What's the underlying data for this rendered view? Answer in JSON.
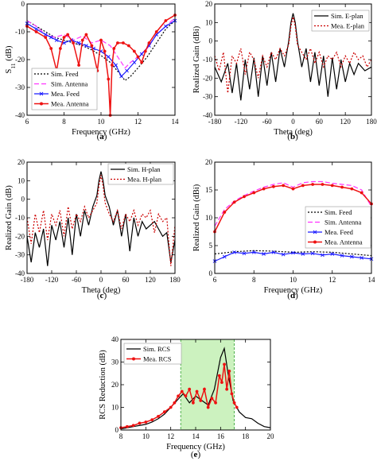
{
  "chart_data": [
    {
      "id": "a",
      "type": "line",
      "panel_label": "(a)",
      "xlabel": "Frequency (GHz)",
      "ylabel": "S11 (dB)",
      "xlim": [
        6,
        14
      ],
      "ylim": [
        -40,
        0
      ],
      "xticks": [
        6,
        8,
        10,
        12,
        14
      ],
      "yticks": [
        -40,
        -30,
        -20,
        -10,
        0
      ],
      "xtick_labels": [
        "6",
        "8",
        "10",
        "12",
        "14"
      ],
      "ytick_labels": [
        "-40",
        "-30",
        "-20",
        "-10",
        "0"
      ],
      "legend_position": "bottom-left",
      "grid": false,
      "series": [
        {
          "name": "Sim. Feed",
          "color": "#000000",
          "dash": "2,2",
          "marker": "none",
          "x": [
            6,
            6.5,
            7,
            7.5,
            8,
            8.5,
            9,
            9.5,
            10,
            10.5,
            11,
            11.3,
            11.6,
            12,
            12.5,
            13,
            13.5,
            14
          ],
          "y": [
            -6,
            -8,
            -10,
            -12,
            -13,
            -14,
            -15,
            -16.5,
            -18.5,
            -21,
            -25,
            -27.5,
            -26,
            -23,
            -19,
            -14,
            -9,
            -6
          ]
        },
        {
          "name": "Sim. Antenna",
          "color": "#ff33ff",
          "dash": "6,3",
          "marker": "none",
          "x": [
            6,
            6.5,
            7,
            7.5,
            8,
            8.5,
            9,
            9.5,
            10,
            10.5,
            11,
            11.3,
            11.6,
            12,
            12.5,
            13,
            13.5,
            14
          ],
          "y": [
            -6,
            -8,
            -11,
            -12,
            -11,
            -13,
            -11.5,
            -14,
            -13,
            -15,
            -20,
            -23,
            -21,
            -19,
            -16,
            -11,
            -8,
            -5
          ]
        },
        {
          "name": "Mea. Feed",
          "color": "#1a1aff",
          "dash": "",
          "marker": "x",
          "x": [
            6,
            6.5,
            7,
            7.3,
            7.6,
            8,
            8.4,
            8.8,
            9.2,
            9.6,
            10,
            10.4,
            10.8,
            11.1,
            11.4,
            11.8,
            12.2,
            12.6,
            13,
            13.5,
            14
          ],
          "y": [
            -7,
            -9,
            -11,
            -12,
            -13,
            -14,
            -13,
            -14,
            -15,
            -16,
            -17,
            -19,
            -22,
            -26,
            -24,
            -21,
            -18,
            -15,
            -11,
            -8,
            -6
          ]
        },
        {
          "name": "Mea. Antenna",
          "color": "#ee1111",
          "dash": "",
          "marker": "dot",
          "x": [
            6,
            6.5,
            7,
            7.3,
            7.6,
            7.8,
            8,
            8.2,
            8.5,
            8.8,
            9,
            9.2,
            9.5,
            9.8,
            10,
            10.2,
            10.4,
            10.5,
            10.6,
            10.7,
            10.9,
            11.2,
            11.5,
            11.8,
            12,
            12.2,
            12.4,
            12.6,
            13,
            13.5,
            14
          ],
          "y": [
            -8,
            -10,
            -12,
            -16,
            -24,
            -16,
            -12,
            -11,
            -14,
            -22,
            -13,
            -11,
            -15,
            -24,
            -13,
            -17,
            -27,
            -40,
            -22,
            -16,
            -14,
            -14,
            -15,
            -17,
            -19,
            -21,
            -17,
            -14,
            -10,
            -6,
            -4
          ]
        }
      ]
    },
    {
      "id": "b",
      "type": "line",
      "panel_label": "(b)",
      "xlabel": "Theta (deg)",
      "ylabel": "Realized Gain (dBi)",
      "xlim": [
        -180,
        180
      ],
      "ylim": [
        -40,
        20
      ],
      "xticks": [
        -180,
        -120,
        -60,
        0,
        60,
        120,
        180
      ],
      "yticks": [
        -40,
        -30,
        -20,
        -10,
        0,
        10,
        20
      ],
      "xtick_labels": [
        "-180",
        "-120",
        "-60",
        "0",
        "60",
        "120",
        "180"
      ],
      "ytick_labels": [
        "-40",
        "-30",
        "-20",
        "-10",
        "0",
        "10",
        "20"
      ],
      "legend_position": "top-right",
      "grid": false,
      "series": [
        {
          "name": "Sim. E-plan",
          "color": "#000000",
          "dash": "",
          "marker": "none",
          "x": [
            -180,
            -165,
            -150,
            -140,
            -130,
            -120,
            -110,
            -100,
            -90,
            -80,
            -70,
            -60,
            -50,
            -40,
            -30,
            -20,
            -10,
            -5,
            0,
            5,
            10,
            20,
            30,
            40,
            50,
            60,
            70,
            80,
            90,
            100,
            110,
            120,
            130,
            140,
            150,
            165,
            180
          ],
          "y": [
            -14,
            -22,
            -12,
            -28,
            -12,
            -32,
            -10,
            -26,
            -9,
            -30,
            -8,
            -24,
            -6,
            -22,
            -4,
            -14,
            0,
            10,
            15,
            10,
            0,
            -14,
            -4,
            -22,
            -6,
            -24,
            -8,
            -30,
            -9,
            -26,
            -10,
            -22,
            -12,
            -18,
            -12,
            -16,
            -14
          ]
        },
        {
          "name": "Mea. E-plan",
          "color": "#cc0000",
          "dash": "2,2",
          "marker": "none",
          "x": [
            -180,
            -170,
            -160,
            -150,
            -140,
            -130,
            -120,
            -110,
            -100,
            -90,
            -80,
            -70,
            -60,
            -50,
            -40,
            -30,
            -20,
            -10,
            -5,
            0,
            5,
            10,
            20,
            30,
            40,
            50,
            60,
            70,
            80,
            90,
            100,
            110,
            120,
            130,
            140,
            150,
            160,
            170,
            180
          ],
          "y": [
            -8,
            -16,
            -6,
            -28,
            -8,
            -12,
            -4,
            -18,
            -6,
            -10,
            -20,
            -8,
            -14,
            -6,
            -10,
            -4,
            -8,
            -2,
            8,
            13,
            8,
            -2,
            -6,
            -10,
            -4,
            -12,
            -6,
            -14,
            -8,
            -10,
            -6,
            -14,
            -8,
            -12,
            -6,
            -10,
            -8,
            -14,
            -10
          ]
        }
      ]
    },
    {
      "id": "c",
      "type": "line",
      "panel_label": "(c)",
      "xlabel": "Theta (deg)",
      "ylabel": "Realized Gain (dB)",
      "xlim": [
        -180,
        180
      ],
      "ylim": [
        -40,
        20
      ],
      "xticks": [
        -180,
        -120,
        -60,
        0,
        60,
        120,
        180
      ],
      "yticks": [
        -40,
        -30,
        -20,
        -10,
        0,
        10,
        20
      ],
      "xtick_labels": [
        "-180",
        "-120",
        "-60",
        "0",
        "60",
        "120",
        "180"
      ],
      "ytick_labels": [
        "-40",
        "-30",
        "-20",
        "-10",
        "0",
        "10",
        "20"
      ],
      "legend_position": "top-right",
      "grid": false,
      "series": [
        {
          "name": "Sim. H-plan",
          "color": "#000000",
          "dash": "",
          "marker": "none",
          "x": [
            -180,
            -170,
            -160,
            -150,
            -140,
            -130,
            -120,
            -110,
            -100,
            -90,
            -80,
            -70,
            -60,
            -50,
            -40,
            -30,
            -20,
            -10,
            -5,
            0,
            5,
            10,
            20,
            30,
            40,
            50,
            60,
            70,
            80,
            90,
            100,
            110,
            120,
            130,
            140,
            150,
            160,
            170,
            180
          ],
          "y": [
            -20,
            -34,
            -18,
            -26,
            -16,
            -36,
            -14,
            -22,
            -12,
            -26,
            -10,
            -30,
            -8,
            -20,
            -6,
            -14,
            -4,
            2,
            10,
            15,
            10,
            2,
            -4,
            -14,
            -6,
            -20,
            -8,
            -28,
            -10,
            -20,
            -12,
            -16,
            -14,
            -12,
            -16,
            -20,
            -18,
            -34,
            -22
          ]
        },
        {
          "name": "Mea. H-plan",
          "color": "#cc0000",
          "dash": "2,2",
          "marker": "none",
          "x": [
            -180,
            -170,
            -160,
            -150,
            -140,
            -130,
            -120,
            -110,
            -100,
            -90,
            -80,
            -70,
            -60,
            -50,
            -40,
            -30,
            -20,
            -10,
            -5,
            0,
            5,
            10,
            20,
            30,
            40,
            50,
            60,
            70,
            80,
            90,
            100,
            110,
            120,
            130,
            140,
            150,
            160,
            170,
            180
          ],
          "y": [
            -10,
            -24,
            -8,
            -18,
            -6,
            -22,
            -8,
            -14,
            -6,
            -20,
            -4,
            -16,
            -8,
            -12,
            -4,
            -10,
            -6,
            -2,
            7,
            13,
            7,
            -2,
            -8,
            -12,
            -6,
            -16,
            -8,
            -12,
            -6,
            -14,
            -8,
            -10,
            -6,
            -18,
            -8,
            -12,
            -10,
            -36,
            -14
          ]
        }
      ]
    },
    {
      "id": "d",
      "type": "line",
      "panel_label": "(d)",
      "xlabel": "Frequency (GHz)",
      "ylabel": "Realized Gain (dBi)",
      "xlim": [
        6,
        14
      ],
      "ylim": [
        0,
        20
      ],
      "xticks": [
        6,
        8,
        10,
        12,
        14
      ],
      "yticks": [
        0,
        5,
        10,
        15,
        20
      ],
      "xtick_labels": [
        "6",
        "8",
        "10",
        "12",
        "14"
      ],
      "ytick_labels": [
        "0",
        "5",
        "10",
        "15",
        "20"
      ],
      "legend_position": "center-right",
      "grid": false,
      "series": [
        {
          "name": "Sim. Feed",
          "color": "#000000",
          "dash": "2,2",
          "marker": "none",
          "x": [
            6,
            7,
            8,
            9,
            10,
            11,
            12,
            13,
            14
          ],
          "y": [
            3.5,
            3.9,
            4.1,
            4.0,
            3.8,
            3.9,
            3.8,
            3.5,
            3.2
          ]
        },
        {
          "name": "Sim. Antenna",
          "color": "#ff33ff",
          "dash": "6,3",
          "marker": "none",
          "x": [
            6,
            6.5,
            7,
            7.5,
            8,
            8.5,
            9,
            9.5,
            10,
            10.5,
            11,
            11.5,
            12,
            12.5,
            13,
            13.5,
            14
          ],
          "y": [
            8.5,
            11.5,
            13,
            14,
            14.8,
            15.5,
            16,
            16.3,
            15.5,
            16.3,
            16.5,
            16.5,
            16.2,
            16,
            15.8,
            15,
            12
          ]
        },
        {
          "name": "Mea. Feed",
          "color": "#1a1aff",
          "dash": "",
          "marker": "x",
          "x": [
            6,
            6.5,
            7,
            7.5,
            8,
            8.5,
            9,
            9.5,
            10,
            10.5,
            11,
            11.5,
            12,
            12.5,
            13,
            13.5,
            14
          ],
          "y": [
            2.2,
            3.0,
            3.8,
            3.6,
            3.8,
            3.5,
            3.8,
            3.4,
            3.7,
            3.5,
            3.6,
            3.3,
            3.5,
            3.2,
            3.0,
            2.8,
            2.6
          ]
        },
        {
          "name": "Mea. Antenna",
          "color": "#ee1111",
          "dash": "",
          "marker": "dot",
          "x": [
            6,
            6.5,
            7,
            7.5,
            8,
            8.5,
            9,
            9.5,
            10,
            10.5,
            11,
            11.5,
            12,
            12.5,
            13,
            13.5,
            14
          ],
          "y": [
            7.5,
            11,
            12.8,
            13.8,
            14.5,
            15.2,
            15.6,
            15.8,
            15.2,
            15.8,
            16,
            16,
            15.8,
            15.5,
            15.2,
            14.5,
            12.5
          ]
        }
      ]
    },
    {
      "id": "e",
      "type": "line",
      "panel_label": "(e)",
      "xlabel": "Frequency (GHz)",
      "ylabel": "RCS Reduction (dB)",
      "xlim": [
        8,
        20
      ],
      "ylim": [
        0,
        40
      ],
      "xticks": [
        8,
        10,
        12,
        14,
        16,
        18,
        20
      ],
      "yticks": [
        0,
        10,
        20,
        30,
        40
      ],
      "xtick_labels": [
        "8",
        "10",
        "12",
        "14",
        "16",
        "18",
        "20"
      ],
      "ytick_labels": [
        "0",
        "10",
        "20",
        "30",
        "40"
      ],
      "legend_position": "top-left",
      "grid": false,
      "highlight_band": {
        "x0": 12.8,
        "x1": 17.1,
        "color": "#ccf2bf"
      },
      "series": [
        {
          "name": "Sim. RCS",
          "color": "#000000",
          "dash": "",
          "marker": "none",
          "x": [
            8,
            9,
            10,
            10.5,
            11,
            11.5,
            12,
            12.5,
            13,
            13.5,
            14,
            14.5,
            15,
            15.5,
            16,
            16.3,
            16.6,
            17,
            17.5,
            18,
            18.5,
            19,
            19.5,
            20
          ],
          "y": [
            0.5,
            1.5,
            2.5,
            3.5,
            5,
            7,
            10,
            13,
            16,
            12,
            15,
            13,
            11,
            18,
            32,
            36,
            25,
            13,
            8,
            5.5,
            5,
            3,
            1.5,
            1
          ]
        },
        {
          "name": "Mea. RCS",
          "color": "#ee1111",
          "dash": "",
          "marker": "dot",
          "x": [
            8,
            8.5,
            9,
            9.5,
            10,
            10.5,
            11,
            11.5,
            12,
            12.3,
            12.6,
            12.9,
            13.2,
            13.5,
            13.8,
            14.1,
            14.4,
            14.7,
            15,
            15.3,
            15.6,
            15.9,
            16.1,
            16.3,
            16.5,
            16.7,
            16.9,
            17.1,
            17.3
          ],
          "y": [
            1,
            1.5,
            2,
            3,
            3.5,
            4.5,
            6,
            8,
            10,
            12,
            15,
            17,
            15,
            18,
            12,
            17,
            13,
            18,
            10,
            14,
            12,
            24,
            21,
            29,
            18,
            26,
            16,
            12,
            10
          ]
        }
      ]
    }
  ]
}
